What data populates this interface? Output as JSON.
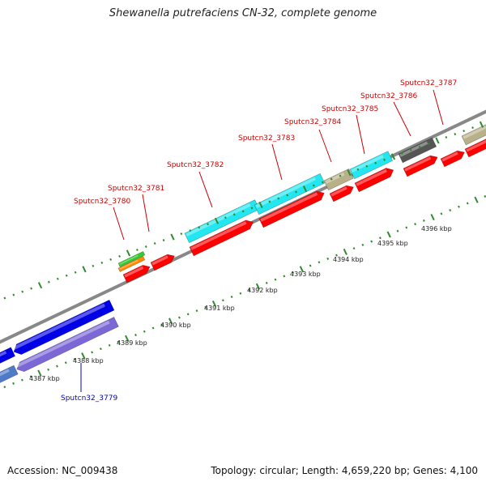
{
  "title": "Shewanella putrefaciens CN-32, complete genome",
  "footer": {
    "accession": "Accession: NC_009438",
    "summary": "Topology: circular; Length: 4,659,220 bp; Genes: 4,100"
  },
  "ruler_labels": [
    "4387 kbp",
    "4388 kbp",
    "4389 kbp",
    "4390 kbp",
    "4391 kbp",
    "4392 kbp",
    "4393 kbp",
    "4394 kbp",
    "4395 kbp",
    "4396 kbp"
  ],
  "gene_labels": [
    {
      "text": "Sputcn32_3779",
      "color": "#0000cc"
    },
    {
      "text": "Sputcn32_3780",
      "color": "#cc0000"
    },
    {
      "text": "Sputcn32_3781",
      "color": "#cc0000"
    },
    {
      "text": "Sputcn32_3782",
      "color": "#cc0000"
    },
    {
      "text": "Sputcn32_3783",
      "color": "#cc0000"
    },
    {
      "text": "Sputcn32_3784",
      "color": "#cc0000"
    },
    {
      "text": "Sputcn32_3785",
      "color": "#cc0000"
    },
    {
      "text": "Sputcn32_3786",
      "color": "#cc0000"
    },
    {
      "text": "Sputcn32_3787",
      "color": "#cc0000"
    }
  ],
  "colors": {
    "cds": "#ff0000",
    "blue_feature": "#0000e6",
    "purple_feature": "#7b68d6",
    "cyan_feature": "#22e6f0",
    "tan_feature": "#b8b088",
    "dark_feature": "#555555",
    "green_feature": "#33cc33",
    "orange_feature": "#ff8c00",
    "backbone": "#888888",
    "ticks": "#2e8b2e"
  }
}
